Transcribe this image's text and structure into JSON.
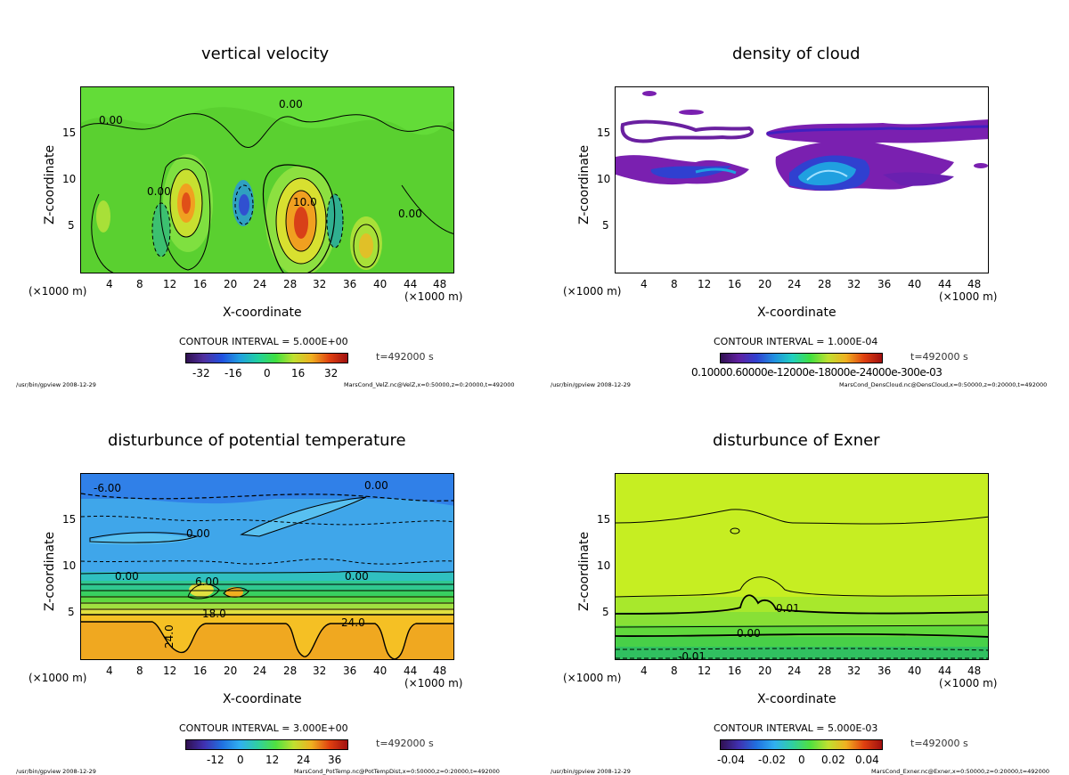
{
  "common": {
    "x_axis_label": "X-coordinate",
    "z_axis_label": "Z-coordinate",
    "unit_left": "(×1000 m)",
    "unit_right": "(×1000 m)",
    "x_ticks": [
      "4",
      "8",
      "12",
      "16",
      "20",
      "24",
      "28",
      "32",
      "36",
      "40",
      "44",
      "48"
    ],
    "z_ticks": [
      "15",
      "10",
      "5"
    ],
    "time": "t=492000 s",
    "program": "/usr/bin/gpview   2008-12-29"
  },
  "chart_data": [
    {
      "type": "heatmap",
      "title": "vertical velocity",
      "xlabel": "X-coordinate",
      "ylabel": "Z-coordinate",
      "xlim": [
        0,
        50
      ],
      "ylim": [
        0,
        20
      ],
      "contour_interval": "CONTOUR INTERVAL = 5.000E+00",
      "colorbar_ticks": [
        "-32",
        "-16",
        "0",
        "16",
        "32"
      ],
      "contour_labels": [
        "0.00",
        "0.00",
        "0.00",
        "0.00",
        "10.0"
      ],
      "source": "MarsCond_VelZ.nc@VelZ,x=0:50000,z=0:20000,t=492000"
    },
    {
      "type": "heatmap",
      "title": "density of cloud",
      "xlabel": "X-coordinate",
      "ylabel": "Z-coordinate",
      "xlim": [
        0,
        50
      ],
      "ylim": [
        0,
        20
      ],
      "contour_interval": "CONTOUR INTERVAL = 1.000E-04",
      "colorbar_ticks": [
        "0.10000E-03",
        "0.60000E-03",
        "0.12000E-02",
        "0.18000E-02",
        "0.24000E-02",
        "0.30000E-02"
      ],
      "colorbar_tick_text": "0.10000.60000e-12000e-18000e-24000e-300e-03",
      "source": "MarsCond_DensCloud.nc@DensCloud,x=0:50000,z=0:20000,t=492000"
    },
    {
      "type": "heatmap",
      "title": "disturbunce of potential temperature",
      "xlabel": "X-coordinate",
      "ylabel": "Z-coordinate",
      "xlim": [
        0,
        50
      ],
      "ylim": [
        0,
        20
      ],
      "contour_interval": "CONTOUR INTERVAL = 3.000E+00",
      "colorbar_ticks": [
        "-12",
        "0",
        "12",
        "24",
        "36"
      ],
      "contour_labels": [
        "-6.00",
        "0.00",
        "0.00",
        "0.00",
        "0.00",
        "6.00",
        "18.0",
        "24.0",
        "24.0"
      ],
      "source": "MarsCond_PotTemp.nc@PotTempDist,x=0:50000,z=0:20000,t=492000"
    },
    {
      "type": "heatmap",
      "title": "disturbunce of Exner",
      "xlabel": "X-coordinate",
      "ylabel": "Z-coordinate",
      "xlim": [
        0,
        50
      ],
      "ylim": [
        0,
        20
      ],
      "contour_interval": "CONTOUR INTERVAL = 5.000E-03",
      "colorbar_ticks": [
        "-0.04",
        "-0.02",
        "0",
        "0.02",
        "0.04"
      ],
      "contour_labels": [
        "0.01",
        "0.00",
        "-0.01"
      ],
      "source": "MarsCond_Exner.nc@Exner,x=0:50000,z=0:20000,t=492000"
    }
  ]
}
